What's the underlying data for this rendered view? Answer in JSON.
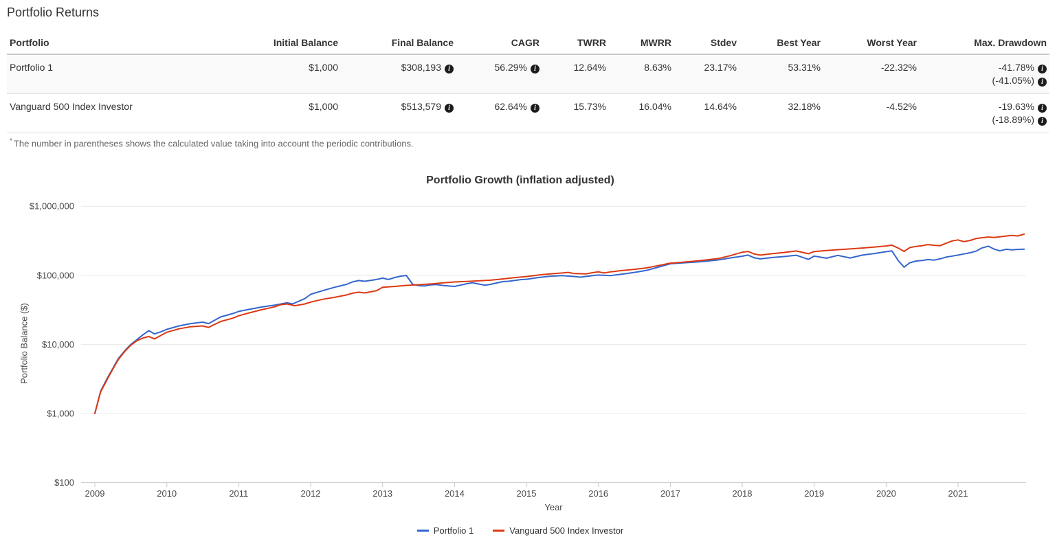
{
  "page": {
    "title": "Portfolio Returns",
    "footnote_marker": "*",
    "footnote": "The number in parentheses shows the calculated value taking into account the periodic contributions."
  },
  "icons": {
    "info": "i"
  },
  "table": {
    "columns": [
      "Portfolio",
      "Initial Balance",
      "Final Balance",
      "CAGR",
      "TWRR",
      "MWRR",
      "Stdev",
      "Best Year",
      "Worst Year",
      "Max. Drawdown"
    ],
    "rows": [
      {
        "name": "Portfolio 1",
        "initial_balance": "$1,000",
        "final_balance": "$308,193",
        "cagr": "56.29%",
        "twrr": "12.64%",
        "mwrr": "8.63%",
        "stdev": "23.17%",
        "best_year": "53.31%",
        "worst_year": "-22.32%",
        "max_drawdown": "-41.78%",
        "max_drawdown_with_contributions": "(-41.05%)"
      },
      {
        "name": "Vanguard 500 Index Investor",
        "initial_balance": "$1,000",
        "final_balance": "$513,579",
        "cagr": "62.64%",
        "twrr": "15.73%",
        "mwrr": "16.04%",
        "stdev": "14.64%",
        "best_year": "32.18%",
        "worst_year": "-4.52%",
        "max_drawdown": "-19.63%",
        "max_drawdown_with_contributions": "(-18.89%)"
      }
    ]
  },
  "chart_data": {
    "type": "line",
    "title": "Portfolio Growth (inflation adjusted)",
    "xlabel": "Year",
    "ylabel": "Portfolio Balance ($)",
    "y_scale": "log",
    "ylim": [
      100,
      1000000
    ],
    "xlim": [
      2009,
      2022
    ],
    "grid": true,
    "legend_position": "bottom",
    "y_ticks": [
      {
        "value": 100,
        "label": "$100"
      },
      {
        "value": 1000,
        "label": "$1,000"
      },
      {
        "value": 10000,
        "label": "$10,000"
      },
      {
        "value": 100000,
        "label": "$100,000"
      },
      {
        "value": 1000000,
        "label": "$1,000,000"
      }
    ],
    "x_ticks": [
      2009,
      2010,
      2011,
      2012,
      2013,
      2014,
      2015,
      2016,
      2017,
      2018,
      2019,
      2020,
      2021
    ],
    "series": [
      {
        "name": "Portfolio 1",
        "color": "#3366cc",
        "points": [
          [
            2009.0,
            1000
          ],
          [
            2009.08,
            2100
          ],
          [
            2009.17,
            3200
          ],
          [
            2009.25,
            4500
          ],
          [
            2009.33,
            6300
          ],
          [
            2009.42,
            8200
          ],
          [
            2009.5,
            10000
          ],
          [
            2009.58,
            11600
          ],
          [
            2009.67,
            13800
          ],
          [
            2009.75,
            15800
          ],
          [
            2009.83,
            14200
          ],
          [
            2009.92,
            15200
          ],
          [
            2010.0,
            16500
          ],
          [
            2010.17,
            18500
          ],
          [
            2010.33,
            20000
          ],
          [
            2010.5,
            21000
          ],
          [
            2010.58,
            20000
          ],
          [
            2010.75,
            25000
          ],
          [
            2010.92,
            28000
          ],
          [
            2011.0,
            30000
          ],
          [
            2011.17,
            32500
          ],
          [
            2011.33,
            35000
          ],
          [
            2011.5,
            37000
          ],
          [
            2011.67,
            40000
          ],
          [
            2011.75,
            38500
          ],
          [
            2011.92,
            46000
          ],
          [
            2012.0,
            53000
          ],
          [
            2012.17,
            60000
          ],
          [
            2012.33,
            67000
          ],
          [
            2012.5,
            74000
          ],
          [
            2012.58,
            80000
          ],
          [
            2012.67,
            84000
          ],
          [
            2012.75,
            82000
          ],
          [
            2012.92,
            87000
          ],
          [
            2013.0,
            91000
          ],
          [
            2013.08,
            87000
          ],
          [
            2013.17,
            93000
          ],
          [
            2013.25,
            97000
          ],
          [
            2013.33,
            99500
          ],
          [
            2013.42,
            74000
          ],
          [
            2013.5,
            71000
          ],
          [
            2013.58,
            70000
          ],
          [
            2013.67,
            72500
          ],
          [
            2013.75,
            73500
          ],
          [
            2013.83,
            71500
          ],
          [
            2013.92,
            70000
          ],
          [
            2014.0,
            69000
          ],
          [
            2014.08,
            72000
          ],
          [
            2014.17,
            75500
          ],
          [
            2014.25,
            78000
          ],
          [
            2014.33,
            75000
          ],
          [
            2014.42,
            72000
          ],
          [
            2014.5,
            74000
          ],
          [
            2014.67,
            81000
          ],
          [
            2014.75,
            82000
          ],
          [
            2014.92,
            86500
          ],
          [
            2015.0,
            87500
          ],
          [
            2015.17,
            93000
          ],
          [
            2015.33,
            97000
          ],
          [
            2015.5,
            99000
          ],
          [
            2015.67,
            96000
          ],
          [
            2015.75,
            94000
          ],
          [
            2015.92,
            99000
          ],
          [
            2016.0,
            101000
          ],
          [
            2016.17,
            99000
          ],
          [
            2016.33,
            104000
          ],
          [
            2016.5,
            110000
          ],
          [
            2016.67,
            118000
          ],
          [
            2016.83,
            131000
          ],
          [
            2017.0,
            147000
          ],
          [
            2017.17,
            151000
          ],
          [
            2017.33,
            155000
          ],
          [
            2017.5,
            160000
          ],
          [
            2017.67,
            167000
          ],
          [
            2017.83,
            178000
          ],
          [
            2018.0,
            189000
          ],
          [
            2018.08,
            196000
          ],
          [
            2018.17,
            179000
          ],
          [
            2018.25,
            173000
          ],
          [
            2018.42,
            181000
          ],
          [
            2018.58,
            187000
          ],
          [
            2018.75,
            195000
          ],
          [
            2018.92,
            170000
          ],
          [
            2019.0,
            190000
          ],
          [
            2019.17,
            177000
          ],
          [
            2019.33,
            194000
          ],
          [
            2019.5,
            178000
          ],
          [
            2019.67,
            196000
          ],
          [
            2019.83,
            206000
          ],
          [
            2020.0,
            220000
          ],
          [
            2020.08,
            226000
          ],
          [
            2020.17,
            162000
          ],
          [
            2020.25,
            131000
          ],
          [
            2020.33,
            152000
          ],
          [
            2020.42,
            161000
          ],
          [
            2020.5,
            164000
          ],
          [
            2020.58,
            169000
          ],
          [
            2020.67,
            166000
          ],
          [
            2020.75,
            173000
          ],
          [
            2020.83,
            183000
          ],
          [
            2020.92,
            190000
          ],
          [
            2021.0,
            196000
          ],
          [
            2021.08,
            204000
          ],
          [
            2021.17,
            212000
          ],
          [
            2021.25,
            224000
          ],
          [
            2021.33,
            248000
          ],
          [
            2021.42,
            264000
          ],
          [
            2021.5,
            240000
          ],
          [
            2021.58,
            226000
          ],
          [
            2021.67,
            238000
          ],
          [
            2021.75,
            234000
          ],
          [
            2021.83,
            237000
          ],
          [
            2021.92,
            239000
          ]
        ]
      },
      {
        "name": "Vanguard 500 Index Investor",
        "color": "#dc3912",
        "points": [
          [
            2009.0,
            1000
          ],
          [
            2009.08,
            2050
          ],
          [
            2009.17,
            3100
          ],
          [
            2009.25,
            4400
          ],
          [
            2009.33,
            6100
          ],
          [
            2009.42,
            8000
          ],
          [
            2009.5,
            9700
          ],
          [
            2009.58,
            11200
          ],
          [
            2009.67,
            12400
          ],
          [
            2009.75,
            13000
          ],
          [
            2009.83,
            12000
          ],
          [
            2009.92,
            13500
          ],
          [
            2010.0,
            15000
          ],
          [
            2010.17,
            16800
          ],
          [
            2010.33,
            18000
          ],
          [
            2010.5,
            18500
          ],
          [
            2010.58,
            17600
          ],
          [
            2010.75,
            21500
          ],
          [
            2010.92,
            24000
          ],
          [
            2011.0,
            26000
          ],
          [
            2011.17,
            29000
          ],
          [
            2011.33,
            32000
          ],
          [
            2011.5,
            35000
          ],
          [
            2011.58,
            37500
          ],
          [
            2011.67,
            38500
          ],
          [
            2011.78,
            36300
          ],
          [
            2011.92,
            38500
          ],
          [
            2012.0,
            41000
          ],
          [
            2012.17,
            45000
          ],
          [
            2012.33,
            48000
          ],
          [
            2012.5,
            52000
          ],
          [
            2012.58,
            55000
          ],
          [
            2012.67,
            57000
          ],
          [
            2012.75,
            55500
          ],
          [
            2012.92,
            60000
          ],
          [
            2013.0,
            67000
          ],
          [
            2013.17,
            69000
          ],
          [
            2013.33,
            71500
          ],
          [
            2013.5,
            73000
          ],
          [
            2013.67,
            75000
          ],
          [
            2013.83,
            77500
          ],
          [
            2014.0,
            80000
          ],
          [
            2014.17,
            81500
          ],
          [
            2014.33,
            83000
          ],
          [
            2014.5,
            85000
          ],
          [
            2014.67,
            88500
          ],
          [
            2014.83,
            92500
          ],
          [
            2015.0,
            96000
          ],
          [
            2015.17,
            101000
          ],
          [
            2015.33,
            105000
          ],
          [
            2015.5,
            108000
          ],
          [
            2015.58,
            110000
          ],
          [
            2015.67,
            106000
          ],
          [
            2015.83,
            105000
          ],
          [
            2015.92,
            109000
          ],
          [
            2016.0,
            112000
          ],
          [
            2016.08,
            108000
          ],
          [
            2016.17,
            112000
          ],
          [
            2016.33,
            117000
          ],
          [
            2016.5,
            122000
          ],
          [
            2016.67,
            128000
          ],
          [
            2016.83,
            138000
          ],
          [
            2017.0,
            150000
          ],
          [
            2017.17,
            155000
          ],
          [
            2017.33,
            160000
          ],
          [
            2017.5,
            167000
          ],
          [
            2017.67,
            175000
          ],
          [
            2017.83,
            192000
          ],
          [
            2018.0,
            216000
          ],
          [
            2018.08,
            222000
          ],
          [
            2018.17,
            203000
          ],
          [
            2018.25,
            196000
          ],
          [
            2018.42,
            206000
          ],
          [
            2018.58,
            214000
          ],
          [
            2018.75,
            225000
          ],
          [
            2018.92,
            205000
          ],
          [
            2019.0,
            221000
          ],
          [
            2019.17,
            228000
          ],
          [
            2019.33,
            235000
          ],
          [
            2019.5,
            241000
          ],
          [
            2019.67,
            248000
          ],
          [
            2019.83,
            256000
          ],
          [
            2020.0,
            266000
          ],
          [
            2020.08,
            273000
          ],
          [
            2020.17,
            247000
          ],
          [
            2020.25,
            222000
          ],
          [
            2020.33,
            252000
          ],
          [
            2020.42,
            262000
          ],
          [
            2020.5,
            268000
          ],
          [
            2020.58,
            278000
          ],
          [
            2020.67,
            272000
          ],
          [
            2020.75,
            268000
          ],
          [
            2020.83,
            290000
          ],
          [
            2020.92,
            315000
          ],
          [
            2021.0,
            325000
          ],
          [
            2021.08,
            307000
          ],
          [
            2021.17,
            320000
          ],
          [
            2021.25,
            340000
          ],
          [
            2021.33,
            350000
          ],
          [
            2021.42,
            358000
          ],
          [
            2021.5,
            352000
          ],
          [
            2021.58,
            361000
          ],
          [
            2021.67,
            370000
          ],
          [
            2021.75,
            378000
          ],
          [
            2021.83,
            371000
          ],
          [
            2021.92,
            394000
          ]
        ]
      }
    ]
  }
}
